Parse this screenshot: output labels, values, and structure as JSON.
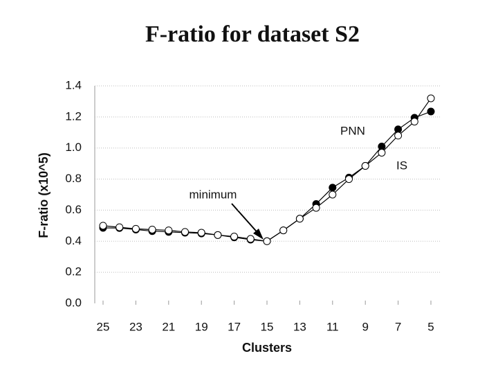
{
  "chart_data": {
    "type": "line",
    "title": "F-ratio for dataset S2",
    "x_label": "Clusters",
    "y_label": "F-ratio (x10^5)",
    "annotation": "minimum",
    "x": [
      25,
      24,
      23,
      22,
      21,
      20,
      19,
      18,
      17,
      16,
      15,
      14,
      13,
      12,
      11,
      10,
      9,
      8,
      7,
      6,
      5
    ],
    "series": [
      {
        "name": "PNN",
        "color": "#000000",
        "values": [
          0.486,
          0.485,
          0.475,
          0.465,
          0.46,
          0.455,
          0.45,
          0.44,
          0.425,
          0.41,
          0.4,
          0.47,
          0.545,
          0.64,
          0.745,
          0.81,
          0.885,
          1.01,
          1.12,
          1.195,
          1.235
        ]
      },
      {
        "name": "IS",
        "color": "#ffffff",
        "values": [
          0.5,
          0.49,
          0.48,
          0.475,
          0.47,
          0.46,
          0.455,
          0.44,
          0.43,
          0.415,
          0.4,
          0.47,
          0.545,
          0.615,
          0.7,
          0.8,
          0.885,
          0.97,
          1.08,
          1.17,
          1.32
        ]
      }
    ],
    "xlim": [
      25,
      5
    ],
    "xticks": [
      25,
      23,
      21,
      19,
      17,
      15,
      13,
      11,
      9,
      7,
      5
    ],
    "ylim": [
      0,
      1.4
    ],
    "yticks": [
      {
        "value": 0,
        "label": "0.0"
      },
      0.2,
      0.4,
      0.6,
      0.8,
      {
        "value": 1,
        "label": "1.0"
      },
      1.2,
      1.4
    ],
    "grid": true
  }
}
